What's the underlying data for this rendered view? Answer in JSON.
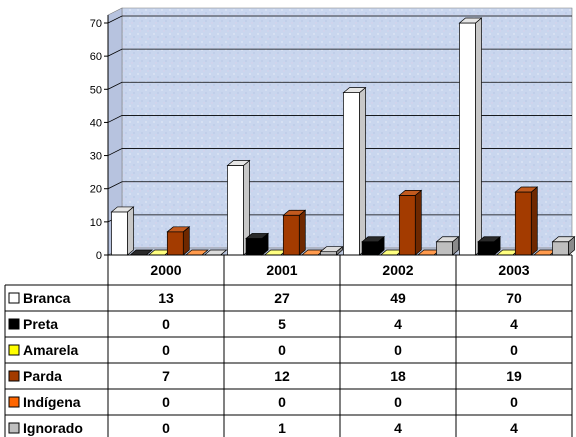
{
  "chart_data": {
    "type": "bar",
    "title": "",
    "xlabel": "",
    "ylabel": "",
    "ylim": [
      0,
      70
    ],
    "yticks": [
      "0",
      "10",
      "20",
      "30",
      "40",
      "50",
      "60",
      "70"
    ],
    "categories": [
      "2000",
      "2001",
      "2002",
      "2003"
    ],
    "series": [
      {
        "name": "Branca",
        "values": [
          13,
          27,
          49,
          70
        ],
        "color": "#ffffff",
        "side": "#c8c8c8",
        "top": "#e6e6e6"
      },
      {
        "name": "Preta",
        "values": [
          0,
          5,
          4,
          4
        ],
        "color": "#000000",
        "side": "#000000",
        "top": "#2a2a2a"
      },
      {
        "name": "Amarela",
        "values": [
          0,
          0,
          0,
          0
        ],
        "color": "#ffff00",
        "side": "#bfbf00",
        "top": "#ffff80"
      },
      {
        "name": "Parda",
        "values": [
          7,
          12,
          18,
          19
        ],
        "color": "#a33b00",
        "side": "#6e2800",
        "top": "#c25a1e"
      },
      {
        "name": "Indígena",
        "values": [
          0,
          0,
          0,
          0
        ],
        "color": "#ff6600",
        "side": "#b84a00",
        "top": "#ff9a4d"
      },
      {
        "name": "Ignorado",
        "values": [
          0,
          1,
          4,
          4
        ],
        "color": "#bfbfbf",
        "side": "#8a8a8a",
        "top": "#dcdcdc"
      }
    ],
    "table": [
      [
        "13",
        "27",
        "49",
        "70"
      ],
      [
        "0",
        "5",
        "4",
        "4"
      ],
      [
        "0",
        "0",
        "0",
        "0"
      ],
      [
        "7",
        "12",
        "18",
        "19"
      ],
      [
        "0",
        "0",
        "0",
        "0"
      ],
      [
        "0",
        "1",
        "4",
        "4"
      ]
    ],
    "grid": true,
    "legend": "data-table-left"
  }
}
